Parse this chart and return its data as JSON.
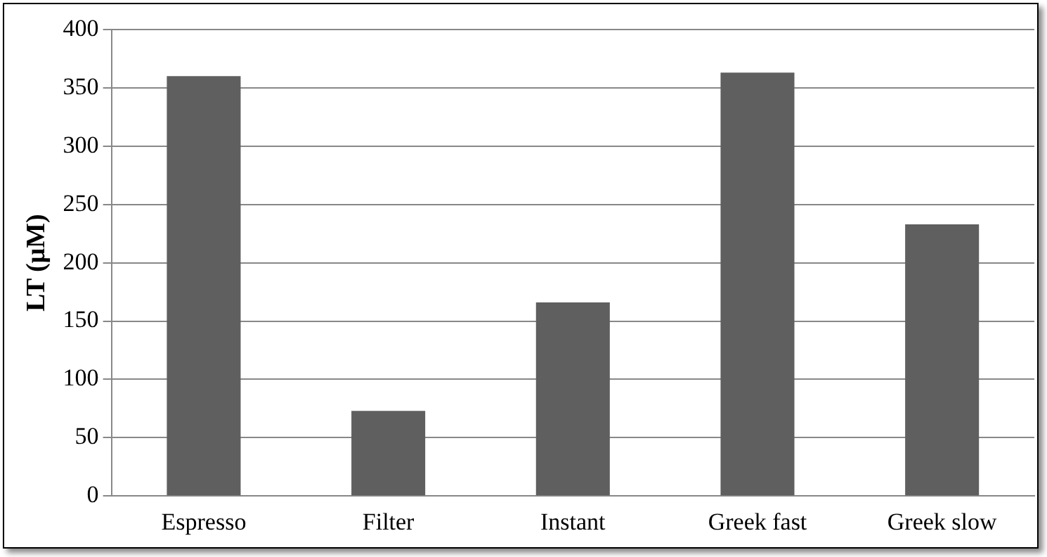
{
  "chart_data": {
    "type": "bar",
    "ylabel": "LT (μM)",
    "categories": [
      "Espresso",
      "Filter",
      "Instant",
      "Greek fast",
      "Greek slow"
    ],
    "values": [
      360,
      73,
      166,
      363,
      233
    ],
    "color": "#5f5f5f",
    "ylim": [
      0,
      400
    ],
    "yticks": [
      0,
      50,
      100,
      150,
      200,
      250,
      300,
      350,
      400
    ],
    "grid": "y",
    "legend": false
  }
}
